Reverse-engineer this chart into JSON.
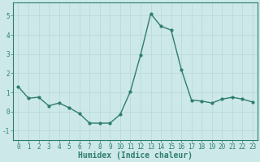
{
  "x": [
    0,
    1,
    2,
    3,
    4,
    5,
    6,
    7,
    8,
    9,
    10,
    11,
    12,
    13,
    14,
    15,
    16,
    17,
    18,
    19,
    20,
    21,
    22,
    23
  ],
  "y": [
    1.3,
    0.7,
    0.75,
    0.3,
    0.45,
    0.2,
    -0.1,
    -0.6,
    -0.6,
    -0.6,
    -0.15,
    1.05,
    2.95,
    5.1,
    4.45,
    4.25,
    2.2,
    0.6,
    0.55,
    0.45,
    0.65,
    0.75,
    0.65,
    0.5
  ],
  "line_color": "#2e7d6e",
  "marker": "o",
  "markersize": 2,
  "linewidth": 1.0,
  "xlabel": "Humidex (Indice chaleur)",
  "xlabel_fontsize": 7,
  "xlim": [
    -0.5,
    23.5
  ],
  "ylim": [
    -1.5,
    5.7
  ],
  "yticks": [
    -1,
    0,
    1,
    2,
    3,
    4,
    5
  ],
  "xticks": [
    0,
    1,
    2,
    3,
    4,
    5,
    6,
    7,
    8,
    9,
    10,
    11,
    12,
    13,
    14,
    15,
    16,
    17,
    18,
    19,
    20,
    21,
    22,
    23
  ],
  "xtick_labels": [
    "0",
    "1",
    "2",
    "3",
    "4",
    "5",
    "6",
    "7",
    "8",
    "9",
    "10",
    "11",
    "12",
    "13",
    "14",
    "15",
    "16",
    "17",
    "18",
    "19",
    "20",
    "21",
    "22",
    "23"
  ],
  "tick_fontsize": 5.5,
  "background_color": "#cce8e8",
  "grid_color": "#b8d8d8",
  "grid_linewidth": 0.5
}
